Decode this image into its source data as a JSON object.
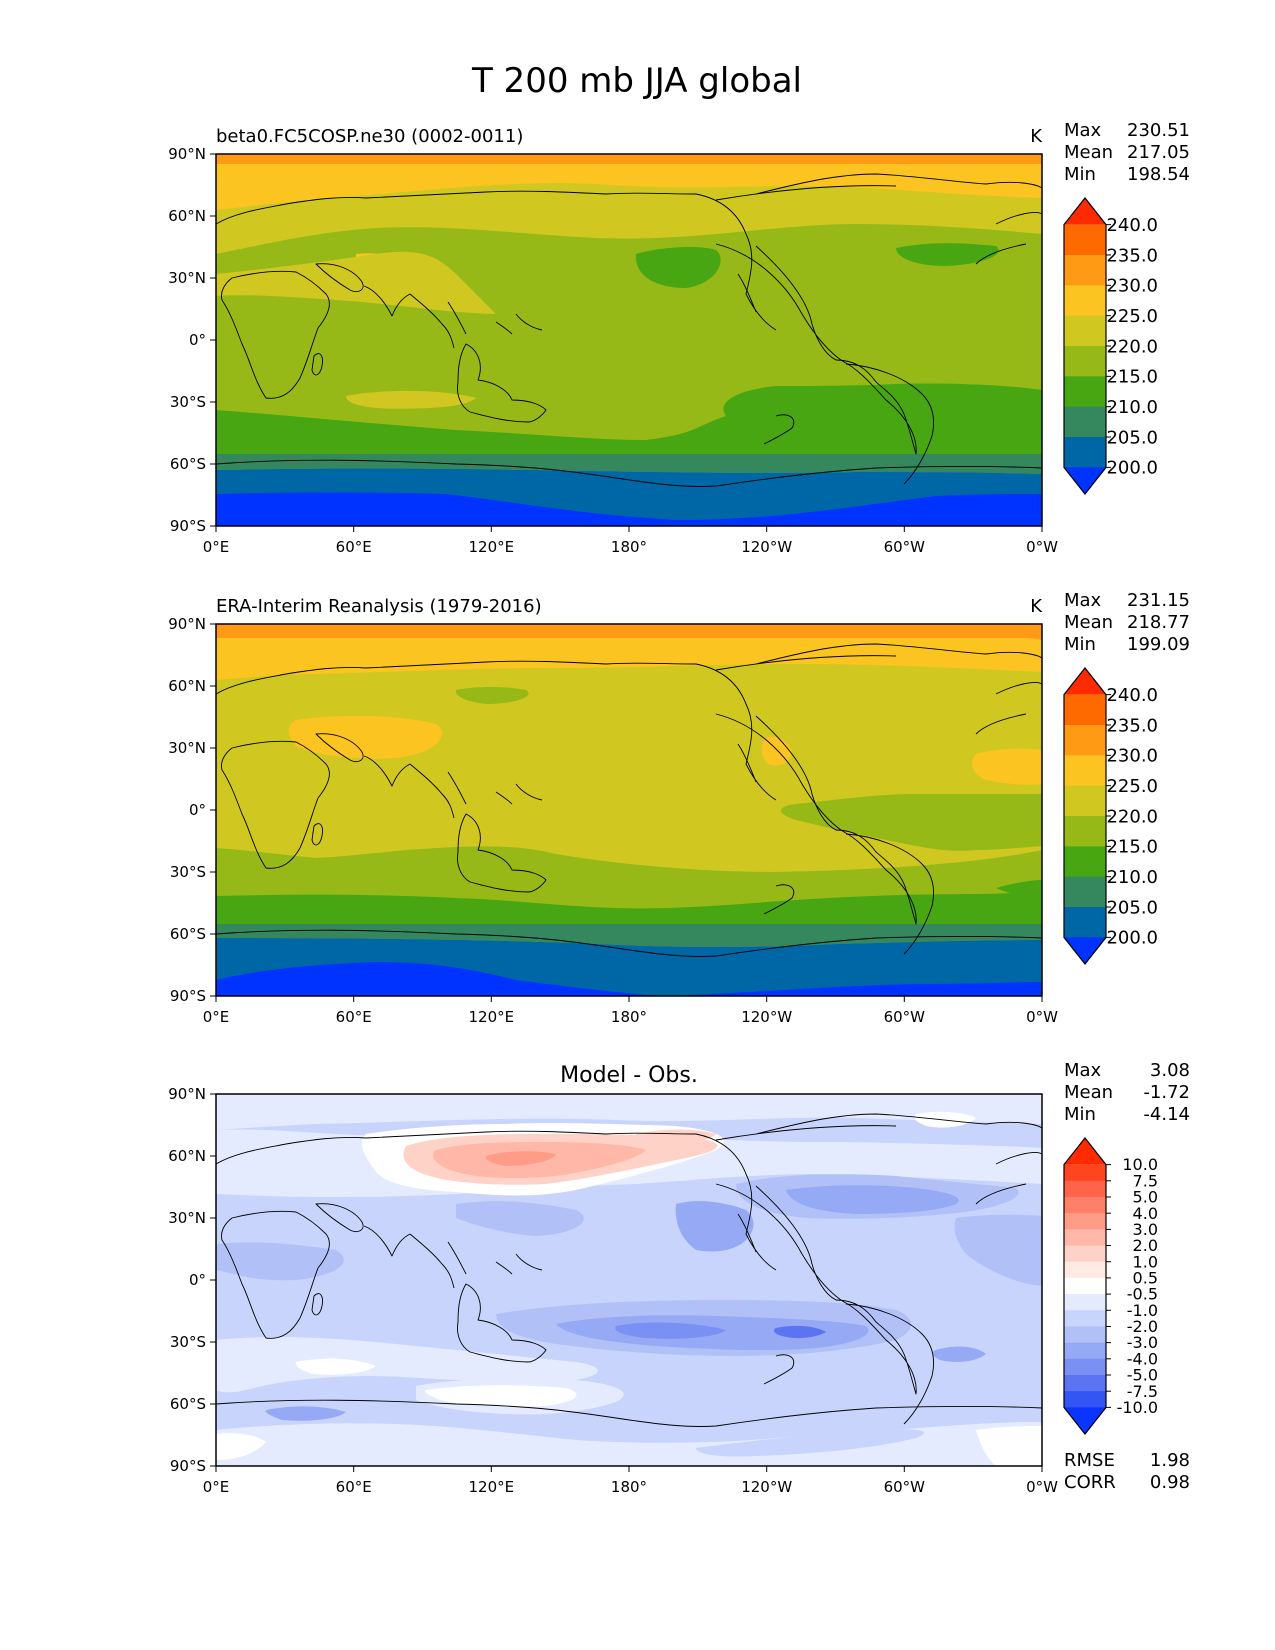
{
  "suptitle": "T 200 mb JJA global",
  "x_ticks": [
    "0°E",
    "60°E",
    "120°E",
    "180°",
    "120°W",
    "60°W",
    "0°W"
  ],
  "y_ticks": [
    "90°N",
    "60°N",
    "30°N",
    "0°",
    "30°S",
    "60°S",
    "90°S"
  ],
  "stat_labels": {
    "max": "Max",
    "mean": "Mean",
    "min": "Min",
    "rmse": "RMSE",
    "corr": "CORR"
  },
  "panels": [
    {
      "id": "test",
      "title_left": "beta0.FC5COSP.ne30 (0002-0011)",
      "title_center": "",
      "units": "K",
      "stats": {
        "max": "230.51",
        "mean": "217.05",
        "min": "198.54"
      },
      "colorbar": {
        "labels": [
          "240.0",
          "235.0",
          "230.0",
          "225.0",
          "220.0",
          "215.0",
          "210.0",
          "205.0",
          "200.0"
        ],
        "colors": [
          "#ff2a00",
          "#ff6a00",
          "#ff9a14",
          "#fbc420",
          "#d1c721",
          "#96b918",
          "#48a612",
          "#35875e",
          "#0067a7",
          "#0033ff"
        ]
      }
    },
    {
      "id": "reference",
      "title_left": "ERA-Interim Reanalysis (1979-2016)",
      "title_center": "",
      "units": "K",
      "stats": {
        "max": "231.15",
        "mean": "218.77",
        "min": "199.09"
      },
      "colorbar": {
        "labels": [
          "240.0",
          "235.0",
          "230.0",
          "225.0",
          "220.0",
          "215.0",
          "210.0",
          "205.0",
          "200.0"
        ],
        "colors": [
          "#ff2a00",
          "#ff6a00",
          "#ff9a14",
          "#fbc420",
          "#d1c721",
          "#96b918",
          "#48a612",
          "#35875e",
          "#0067a7",
          "#0033ff"
        ]
      }
    },
    {
      "id": "difference",
      "title_left": "",
      "title_center": "Model - Obs.",
      "units": "",
      "stats": {
        "max": "3.08",
        "mean": "-1.72",
        "min": "-4.14"
      },
      "metrics": {
        "rmse": "1.98",
        "corr": "0.98"
      },
      "colorbar": {
        "labels": [
          "10.0",
          "7.5",
          "5.0",
          "4.0",
          "3.0",
          "2.0",
          "1.0",
          "0.5",
          "-0.5",
          "-1.0",
          "-2.0",
          "-3.0",
          "-4.0",
          "-5.0",
          "-7.5",
          "-10.0"
        ],
        "colors": [
          "#ff2a00",
          "#ff4420",
          "#ff6448",
          "#ff8068",
          "#ff9c88",
          "#ffb8a8",
          "#ffd2c8",
          "#ffeae4",
          "#ffffff",
          "#e4ebff",
          "#c8d4fb",
          "#b2c0f8",
          "#96a9f5",
          "#7a90f2",
          "#5c73f2",
          "#3454f4",
          "#0a34ff"
        ]
      }
    }
  ]
}
